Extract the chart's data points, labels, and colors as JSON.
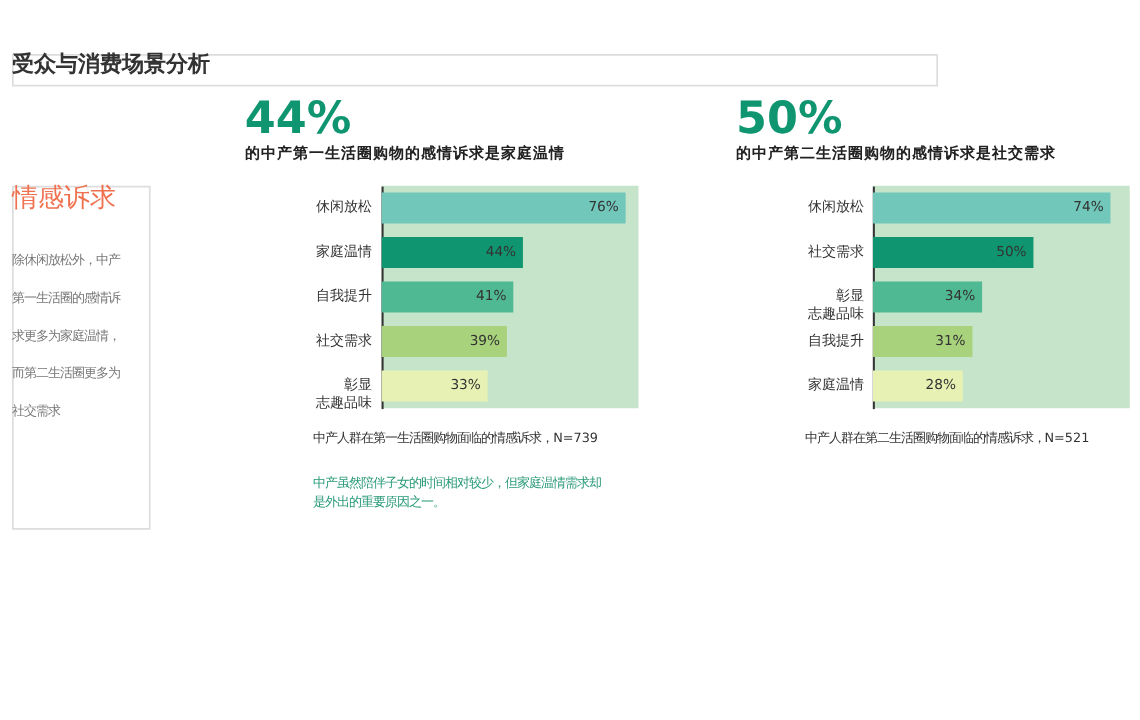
{
  "chart_data": [
    {
      "type": "bar",
      "orientation": "horizontal",
      "tick_labels": "y",
      "title": "44%",
      "subtitle": "的中产第一生活圈购物的感情诉求是家庭温情",
      "categories": [
        "休闲放松",
        "家庭温情",
        "自我提升",
        "社交需求",
        "彰显志趣品味"
      ],
      "values": [
        76,
        44,
        41,
        39,
        33
      ],
      "colors": [
        "#72c7bb",
        "#0f9670",
        "#4fb994",
        "#a9d27c",
        "#e8f1b4"
      ],
      "value_labels": [
        "76%",
        "44%",
        "41%",
        "39%",
        "33%"
      ],
      "annotations": [
        "受众与消费场景分析",
        "情感诉求",
        "除休闲放松外，中产第一生活圈的感情诉求更多为家庭温情，而第二生活圈更多为社交需求",
        "中产人群在第一生活圈购物面临的情感诉求，N=739",
        "中产虽然陪伴子女的时间相对较少，但家庭温情需求却是外出的重要原因之一。"
      ]
    },
    {
      "type": "bar",
      "orientation": "horizontal",
      "tick_labels": "y",
      "title": "50%",
      "subtitle": "的中产第二生活圈购物的感情诉求是社交需求",
      "categories": [
        "休闲放松",
        "社交需求",
        "彰显志趣品味",
        "自我提升",
        "家庭温情"
      ],
      "values": [
        74,
        50,
        34,
        31,
        28
      ],
      "colors": [
        "#72c7bb",
        "#0f9670",
        "#4fb994",
        "#a9d27c",
        "#e8f1b4"
      ],
      "value_labels": [
        "74%",
        "50%",
        "34%",
        "31%",
        "28%"
      ],
      "annotations": [
        "中产人群在第二生活圈购物面临的情感诉求，N=521"
      ]
    }
  ]
}
